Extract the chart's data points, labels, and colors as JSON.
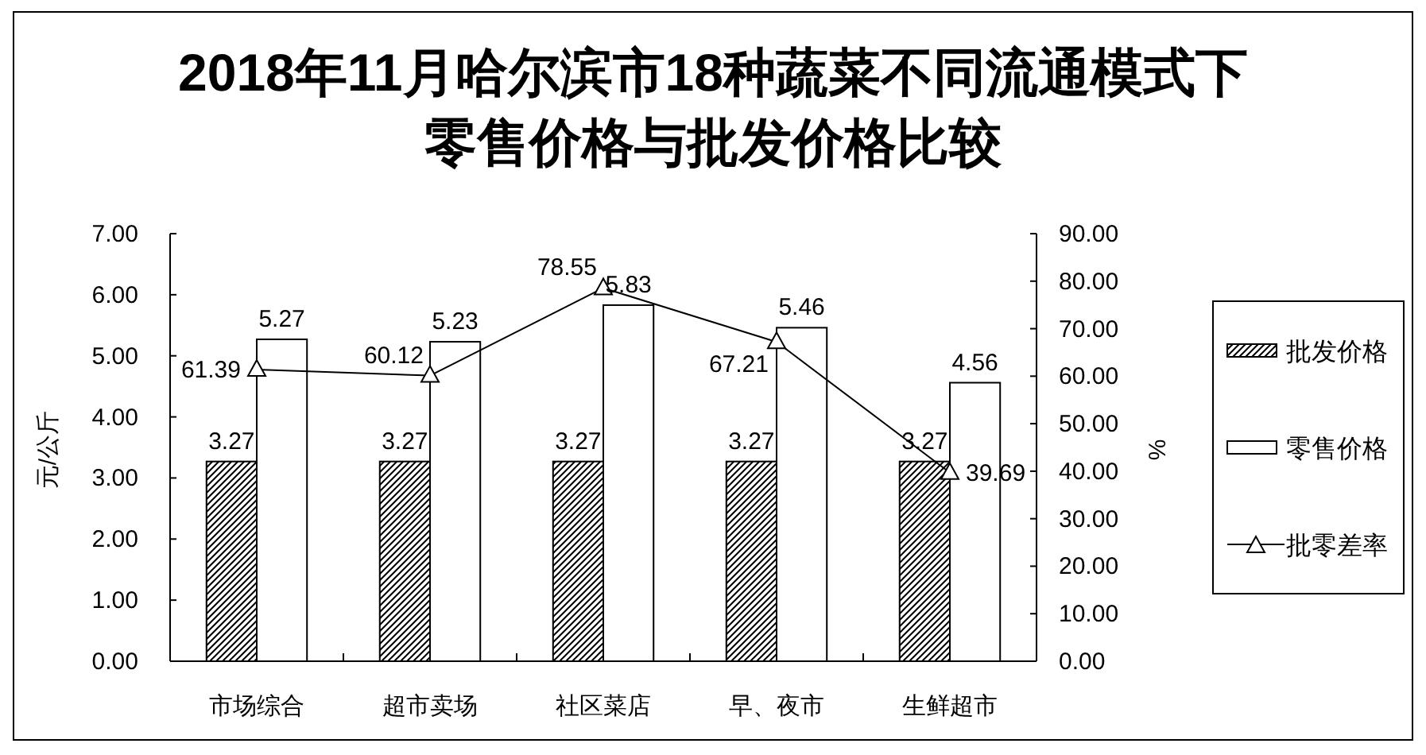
{
  "chart_data": {
    "type": "bar",
    "title": "2018年11月哈尔滨市18种蔬菜不同流通模式下零售价格与批发价格比较",
    "categories": [
      "市场综合",
      "超市卖场",
      "社区菜店",
      "早、夜市",
      "生鲜超市"
    ],
    "series": [
      {
        "name": "批发价格",
        "color": "#000000",
        "values": [
          3.27,
          3.27,
          3.27,
          3.27,
          3.27
        ]
      },
      {
        "name": "零售价格",
        "color": "#ffffff",
        "values": [
          5.27,
          5.23,
          5.83,
          5.46,
          4.56
        ]
      },
      {
        "name": "批零差率",
        "type": "line",
        "axis": "y2",
        "color": "#000000",
        "values": [
          61.39,
          60.12,
          78.55,
          67.21,
          39.69
        ]
      }
    ],
    "ylabel": "元/公斤",
    "y2label": "%",
    "ylim": [
      0,
      7
    ],
    "yticks": [
      {
        "value": 0,
        "label": "0.00"
      },
      {
        "value": 1,
        "label": "1.00"
      },
      {
        "value": 2,
        "label": "2.00"
      },
      {
        "value": 3,
        "label": "3.00"
      },
      {
        "value": 4,
        "label": "4.00"
      },
      {
        "value": 5,
        "label": "5.00"
      },
      {
        "value": 6,
        "label": "6.00"
      },
      {
        "value": 7,
        "label": "7.00"
      }
    ],
    "y2lim": [
      0,
      90
    ],
    "y2ticks": [
      {
        "value": 0,
        "label": "0.00"
      },
      {
        "value": 10,
        "label": "10.00"
      },
      {
        "value": 20,
        "label": "20.00"
      },
      {
        "value": 30,
        "label": "30.00"
      },
      {
        "value": 40,
        "label": "40.00"
      },
      {
        "value": 50,
        "label": "50.00"
      },
      {
        "value": 60,
        "label": "60.00"
      },
      {
        "value": 70,
        "label": "70.00"
      },
      {
        "value": 80,
        "label": "80.00"
      },
      {
        "value": 90,
        "label": "90.00"
      }
    ],
    "data_labels": true,
    "legend": "right",
    "marker": "triangle"
  }
}
